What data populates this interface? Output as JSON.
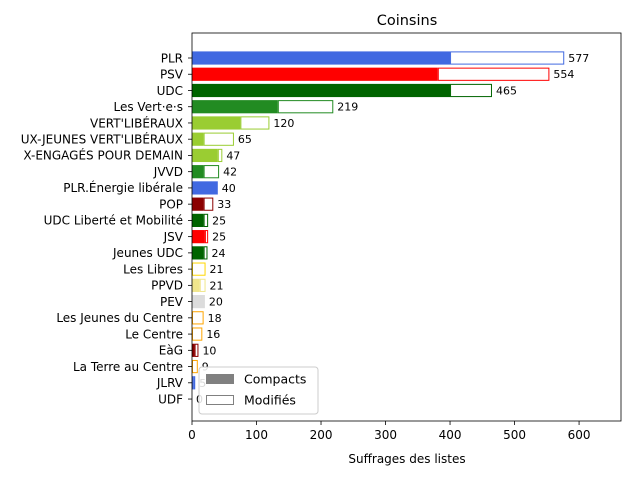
{
  "chart_data": {
    "type": "bar",
    "orientation": "horizontal",
    "title": "Coinsins",
    "xlabel": "Suffrages des listes",
    "ylabel": "",
    "xlim": [
      0,
      665
    ],
    "xticks": [
      0,
      100,
      200,
      300,
      400,
      500,
      600
    ],
    "grid": false,
    "legend_position": "lower-left",
    "legend": [
      {
        "label": "Compacts",
        "style": "filled",
        "color": "#808080"
      },
      {
        "label": "Modifiés",
        "style": "outline",
        "color": "#808080"
      }
    ],
    "categories": [
      "PLR",
      "PSV",
      "UDC",
      "Les Vert·e·s",
      "VERT'LIBÉRAUX",
      "JEUNES VERT'LIBÉRAUX",
      "JEUNES ENGAGÉS POUR DEMAIN",
      "JVVD",
      "PLR.Énergie libérale",
      "POP",
      "UDC Liberté et Mobilité",
      "JSV",
      "Jeunes UDC",
      "Les Libres",
      "PPVD",
      "PEV",
      "Les Jeunes du Centre",
      "Le Centre",
      "EàG",
      "La Terre au Centre",
      "JLRV",
      "UDF"
    ],
    "category_labels": [
      "PLR",
      "PSV",
      "UDC",
      "Les Vert·e·s",
      "VERT'LIBÉRAUX",
      "UX-JEUNES VERT'LIBÉRAUX",
      "X-ENGAGÉS POUR DEMAIN",
      "JVVD",
      "PLR.Énergie libérale",
      "POP",
      "UDC Liberté et Mobilité",
      "JSV",
      "Jeunes UDC",
      "Les Libres",
      "PPVD",
      "PEV",
      "Les Jeunes du Centre",
      "Le Centre",
      "EàG",
      "La Terre au Centre",
      "JLRV",
      "UDF"
    ],
    "series": [
      {
        "name": "Compacts",
        "values": [
          400,
          381,
          400,
          133,
          75,
          18,
          40,
          18,
          40,
          18,
          18,
          20,
          18,
          0,
          12,
          20,
          0,
          0,
          4,
          0,
          2,
          0
        ]
      },
      {
        "name": "Modifiés",
        "values": [
          177,
          173,
          65,
          86,
          45,
          47,
          7,
          24,
          0,
          15,
          7,
          5,
          6,
          21,
          9,
          0,
          18,
          16,
          6,
          9,
          3,
          0
        ]
      }
    ],
    "totals": [
      577,
      554,
      465,
      219,
      120,
      65,
      47,
      42,
      40,
      33,
      25,
      25,
      24,
      21,
      21,
      20,
      18,
      16,
      10,
      9,
      5,
      0
    ],
    "total_labels": [
      "577",
      "554",
      "465",
      "219",
      "120",
      "65",
      "47",
      "42",
      "40",
      "33",
      "25",
      "25",
      "24",
      "21",
      "21",
      "20",
      "18",
      "16",
      "10",
      "9",
      "5",
      "0"
    ],
    "colors": [
      "#4169e1",
      "#ff0000",
      "#006400",
      "#228b22",
      "#9acd32",
      "#9acd32",
      "#9acd32",
      "#228b22",
      "#4169e1",
      "#8b0000",
      "#006400",
      "#ff0000",
      "#006400",
      "#ffd700",
      "#f0e68c",
      "#dcdcdc",
      "#ffa500",
      "#ffa500",
      "#8b0000",
      "#ffa500",
      "#4169e1",
      "#808080"
    ]
  }
}
